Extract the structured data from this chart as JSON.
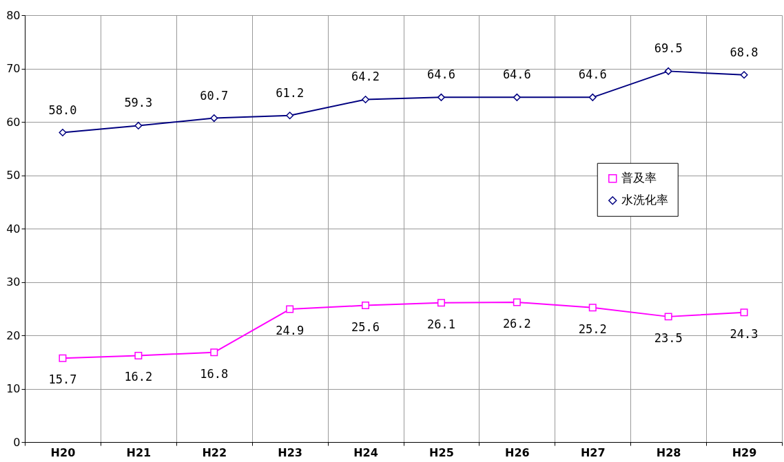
{
  "chart_data": {
    "type": "line",
    "categories": [
      "H20",
      "H21",
      "H22",
      "H23",
      "H24",
      "H25",
      "H26",
      "H27",
      "H28",
      "H29"
    ],
    "series": [
      {
        "name": "普及率",
        "color": "#ff00ff",
        "marker": "square",
        "values": [
          15.7,
          16.2,
          16.8,
          24.9,
          25.6,
          26.1,
          26.2,
          25.2,
          23.5,
          24.3
        ],
        "value_labels": [
          "15.7",
          "16.2",
          "16.8",
          "24.9",
          "25.6",
          "26.1",
          "26.2",
          "25.2",
          "23.5",
          "24.3"
        ]
      },
      {
        "name": "水洗化率",
        "color": "#000080",
        "marker": "diamond",
        "values": [
          58.0,
          59.3,
          60.7,
          61.2,
          64.2,
          64.6,
          64.6,
          64.6,
          69.5,
          68.8
        ],
        "value_labels": [
          "58.0",
          "59.3",
          "60.7",
          "61.2",
          "64.2",
          "64.6",
          "64.6",
          "64.6",
          "69.5",
          "68.8"
        ]
      }
    ],
    "ylim": [
      0,
      80
    ],
    "yticks": [
      0,
      10,
      20,
      30,
      40,
      50,
      60,
      70,
      80
    ],
    "grid": true,
    "legend": "right"
  }
}
